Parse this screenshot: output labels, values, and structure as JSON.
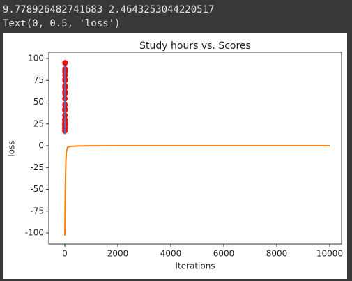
{
  "output_lines": [
    "9.778926482741683 2.4643253044220517",
    "Text(0, 0.5, 'loss')"
  ],
  "chart_data": {
    "type": "line",
    "title": "Study hours vs. Scores",
    "xlabel": "Iterations",
    "ylabel": "loss",
    "xlim": [
      -605,
      10447
    ],
    "xticks": [
      0,
      2000,
      4000,
      6000,
      8000,
      10000
    ],
    "ylim": [
      -112.8,
      107.2
    ],
    "yticks": [
      -100,
      -75,
      -50,
      -25,
      0,
      25,
      50,
      75,
      100
    ],
    "series": [
      {
        "type": "line",
        "color": "#ff7f0e",
        "x": [
          0,
          10,
          20,
          40,
          60,
          100,
          200,
          500,
          1000,
          2000,
          4000,
          6000,
          8000,
          10000
        ],
        "values": [
          -103,
          -70,
          -45,
          -18,
          -7,
          -2,
          -0.8,
          -0.3,
          -0.1,
          0,
          0,
          0,
          0,
          0
        ]
      },
      {
        "type": "scatter",
        "color": "#ff0000",
        "x": [
          2.5,
          5.1,
          3.2,
          8.5,
          3.5,
          1.5,
          9.2,
          5.5,
          8.3,
          2.7,
          7.7,
          5.9,
          4.5,
          3.3,
          1.1,
          8.9,
          2.5,
          1.9,
          6.1,
          7.4,
          2.7,
          4.8,
          3.8,
          6.9,
          7.8
        ],
        "values": [
          21,
          47,
          27,
          75,
          30,
          20,
          88,
          60,
          81,
          25,
          85,
          62,
          41,
          42,
          17,
          95,
          30,
          24,
          67,
          69,
          30,
          54,
          35,
          76,
          86
        ]
      },
      {
        "type": "line",
        "color": "#4f6fb4",
        "x": [
          1.1,
          9.2
        ],
        "values": [
          13.22,
          92.43
        ]
      }
    ]
  }
}
